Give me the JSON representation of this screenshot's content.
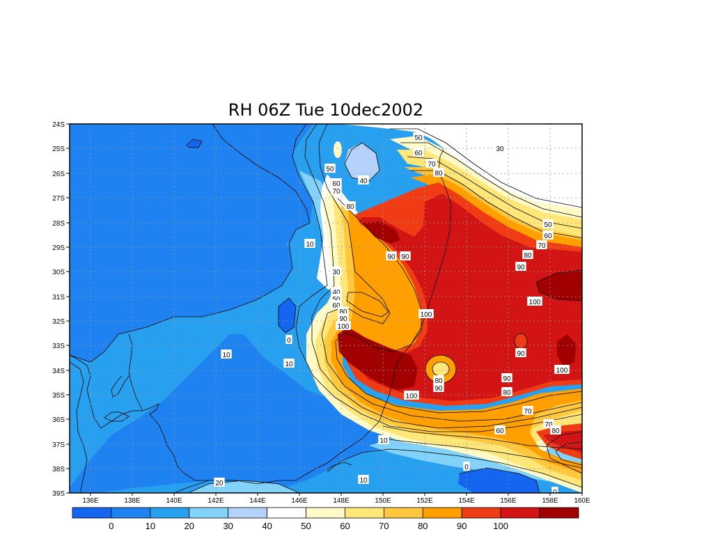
{
  "title": "RH 06Z Tue 10dec2002",
  "lat_labels": [
    "24S",
    "25S",
    "26S",
    "27S",
    "28S",
    "29S",
    "30S",
    "31S",
    "32S",
    "33S",
    "34S",
    "35S",
    "36S",
    "37S",
    "38S",
    "39S"
  ],
  "lon_labels": [
    "136E",
    "138E",
    "140E",
    "142E",
    "144E",
    "146E",
    "148E",
    "150E",
    "152E",
    "154E",
    "156E",
    "158E",
    "160E"
  ],
  "colorbar": {
    "colors": [
      "#1466f0",
      "#1e82f0",
      "#28a0f0",
      "#82d2fa",
      "#b4d2fa",
      "#ffffff",
      "#fffac8",
      "#ffe678",
      "#ffc83c",
      "#ffa000",
      "#f03c14",
      "#d21414",
      "#a00000"
    ],
    "labels": [
      "0",
      "10",
      "20",
      "30",
      "40",
      "50",
      "60",
      "70",
      "80",
      "90",
      "100"
    ]
  },
  "contour_labels": [
    {
      "text": "50"
    },
    {
      "text": "30"
    },
    {
      "text": "60"
    },
    {
      "text": "70"
    },
    {
      "text": "80"
    },
    {
      "text": "50"
    },
    {
      "text": "40"
    },
    {
      "text": "60"
    },
    {
      "text": "70"
    },
    {
      "text": "80"
    },
    {
      "text": "50"
    },
    {
      "text": "60"
    },
    {
      "text": "10"
    },
    {
      "text": "90"
    },
    {
      "text": "90"
    },
    {
      "text": "70"
    },
    {
      "text": "80"
    },
    {
      "text": "90"
    },
    {
      "text": "30"
    },
    {
      "text": "40"
    },
    {
      "text": "50"
    },
    {
      "text": "60"
    },
    {
      "text": "80"
    },
    {
      "text": "90"
    },
    {
      "text": "100"
    },
    {
      "text": "100"
    },
    {
      "text": "100"
    },
    {
      "text": "0"
    },
    {
      "text": "10"
    },
    {
      "text": "10"
    },
    {
      "text": "90"
    },
    {
      "text": "100"
    },
    {
      "text": "80"
    },
    {
      "text": "90"
    },
    {
      "text": "90"
    },
    {
      "text": "100"
    },
    {
      "text": "80"
    },
    {
      "text": "70"
    },
    {
      "text": "70"
    },
    {
      "text": "80"
    },
    {
      "text": "60"
    },
    {
      "text": "10"
    },
    {
      "text": "0"
    },
    {
      "text": "10"
    },
    {
      "text": "0"
    },
    {
      "text": "20"
    }
  ]
}
